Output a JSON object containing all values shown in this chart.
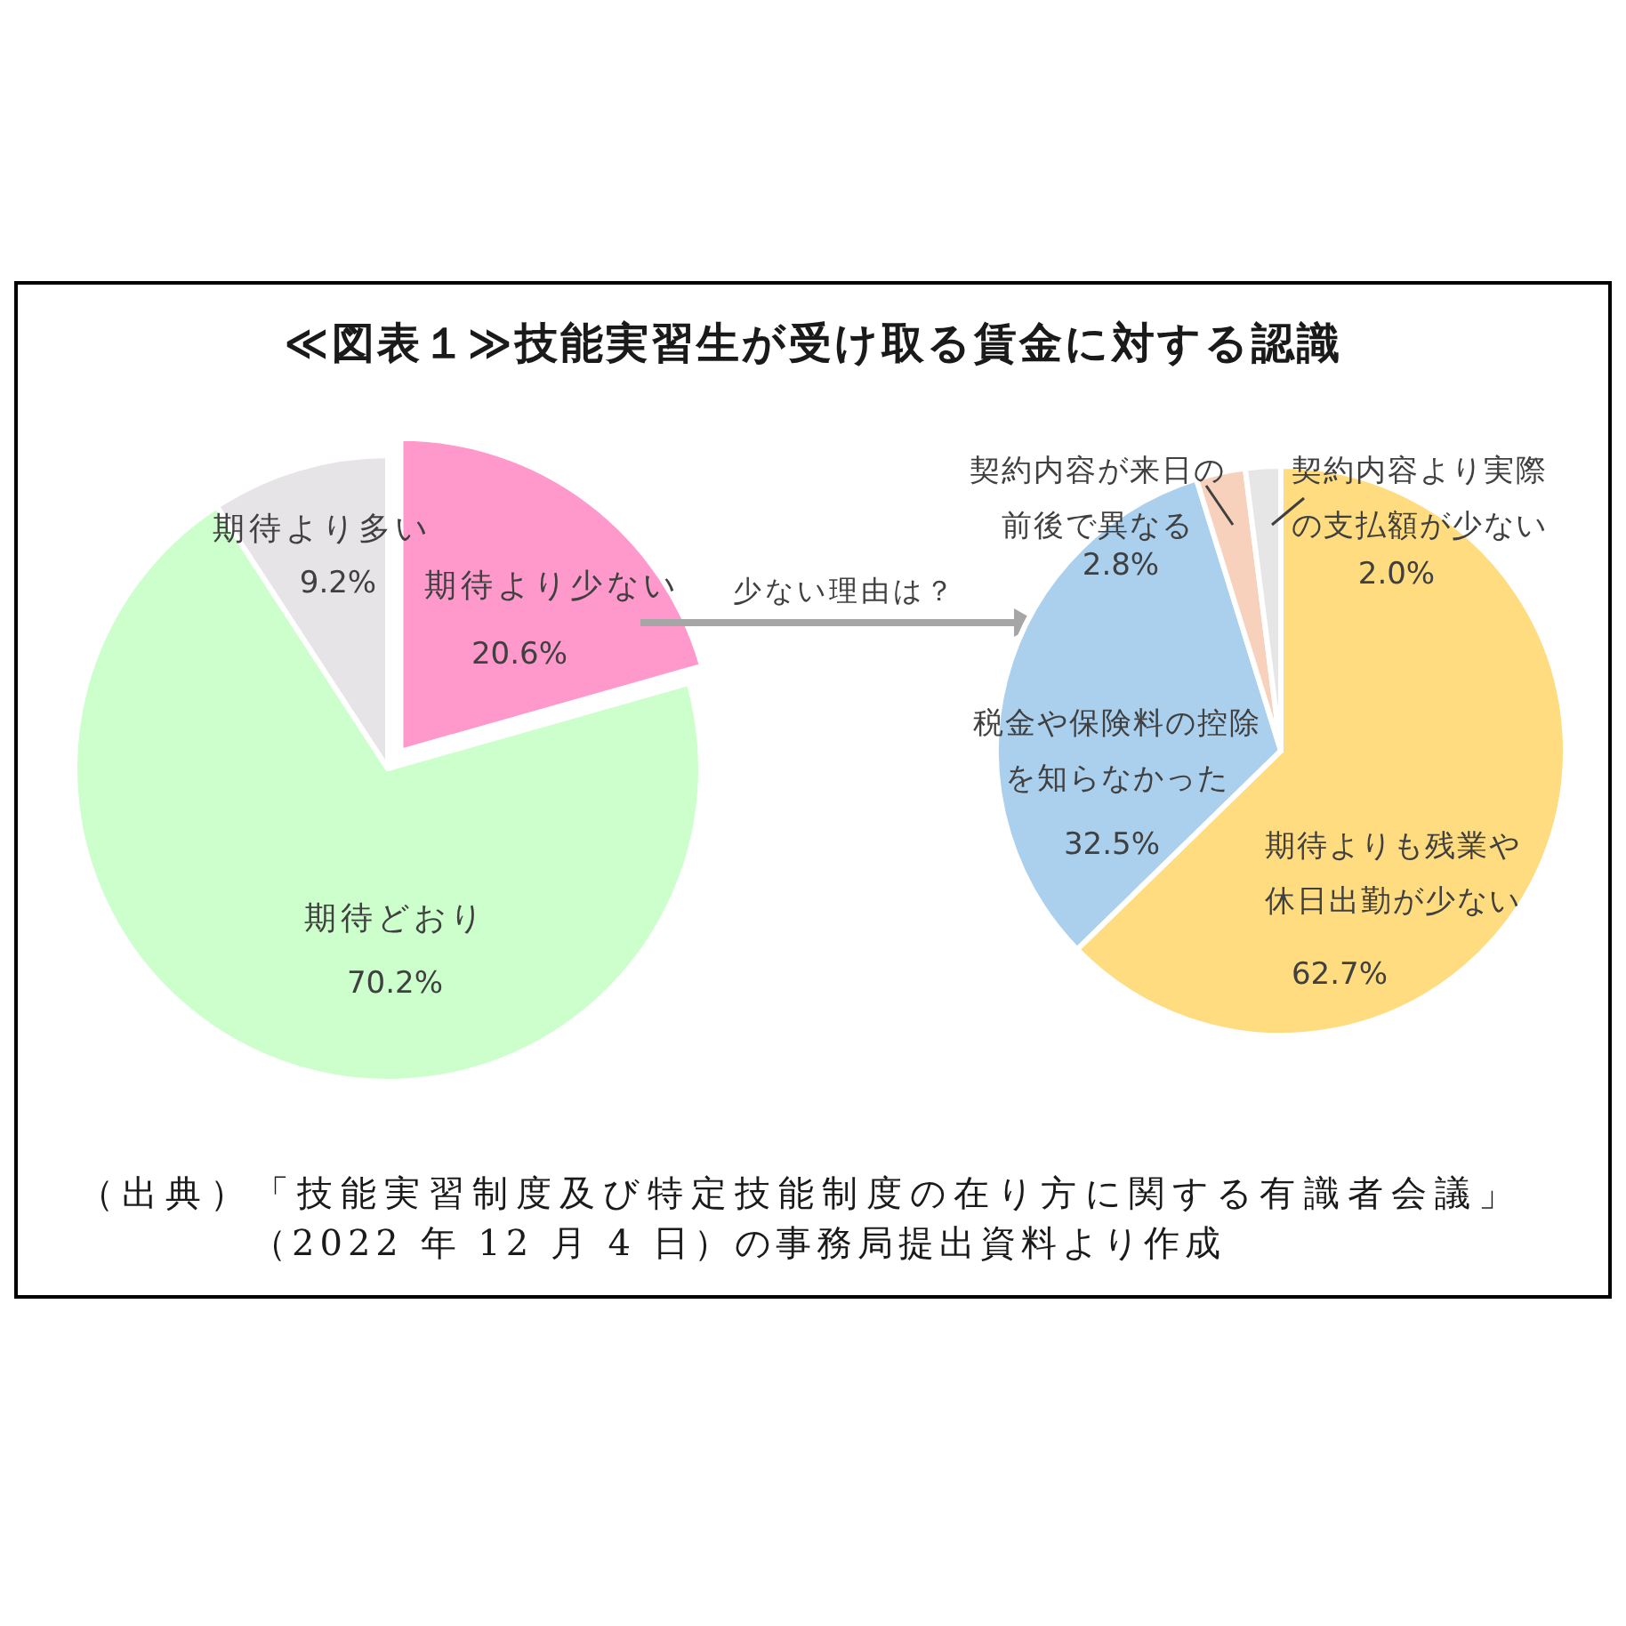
{
  "chart_data": [
    {
      "type": "pie",
      "title": "≪図表１≫技能実習生が受け取る賃金に対する認識",
      "categories": [
        "期待より少ない",
        "期待どおり",
        "期待より多い"
      ],
      "values": [
        20.6,
        70.2,
        9.2
      ],
      "value_labels": [
        "20.6%",
        "70.2%",
        "9.2%"
      ],
      "colors": [
        "#ff99cc",
        "#ccffcc",
        "#e7e4e8"
      ],
      "annotations": [
        "少ない理由は？",
        "（出典）「技能実習制度及び特定技能制度の在り方に関する有識者会議」",
        "（2022 年 12 月 4 日）の事務局提出資料より作成"
      ]
    },
    {
      "type": "pie",
      "categories": [
        "期待よりも残業や休日出勤が少ない",
        "税金や保険料の控除を知らなかった",
        "契約内容が来日の前後で異なる",
        "契約内容より実際の支払額が少ない"
      ],
      "values": [
        62.7,
        32.5,
        2.8,
        2.0
      ],
      "value_labels": [
        "62.7%",
        "32.5%",
        "2.8%",
        "2.0%"
      ],
      "colors": [
        "#ffdc80",
        "#abd0ee",
        "#f7d1bc",
        "#e6e6e6"
      ]
    }
  ]
}
